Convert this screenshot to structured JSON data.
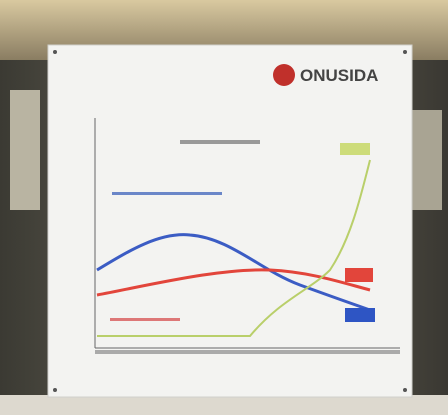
{
  "logo": {
    "text": "ONUSIDA"
  }
}
